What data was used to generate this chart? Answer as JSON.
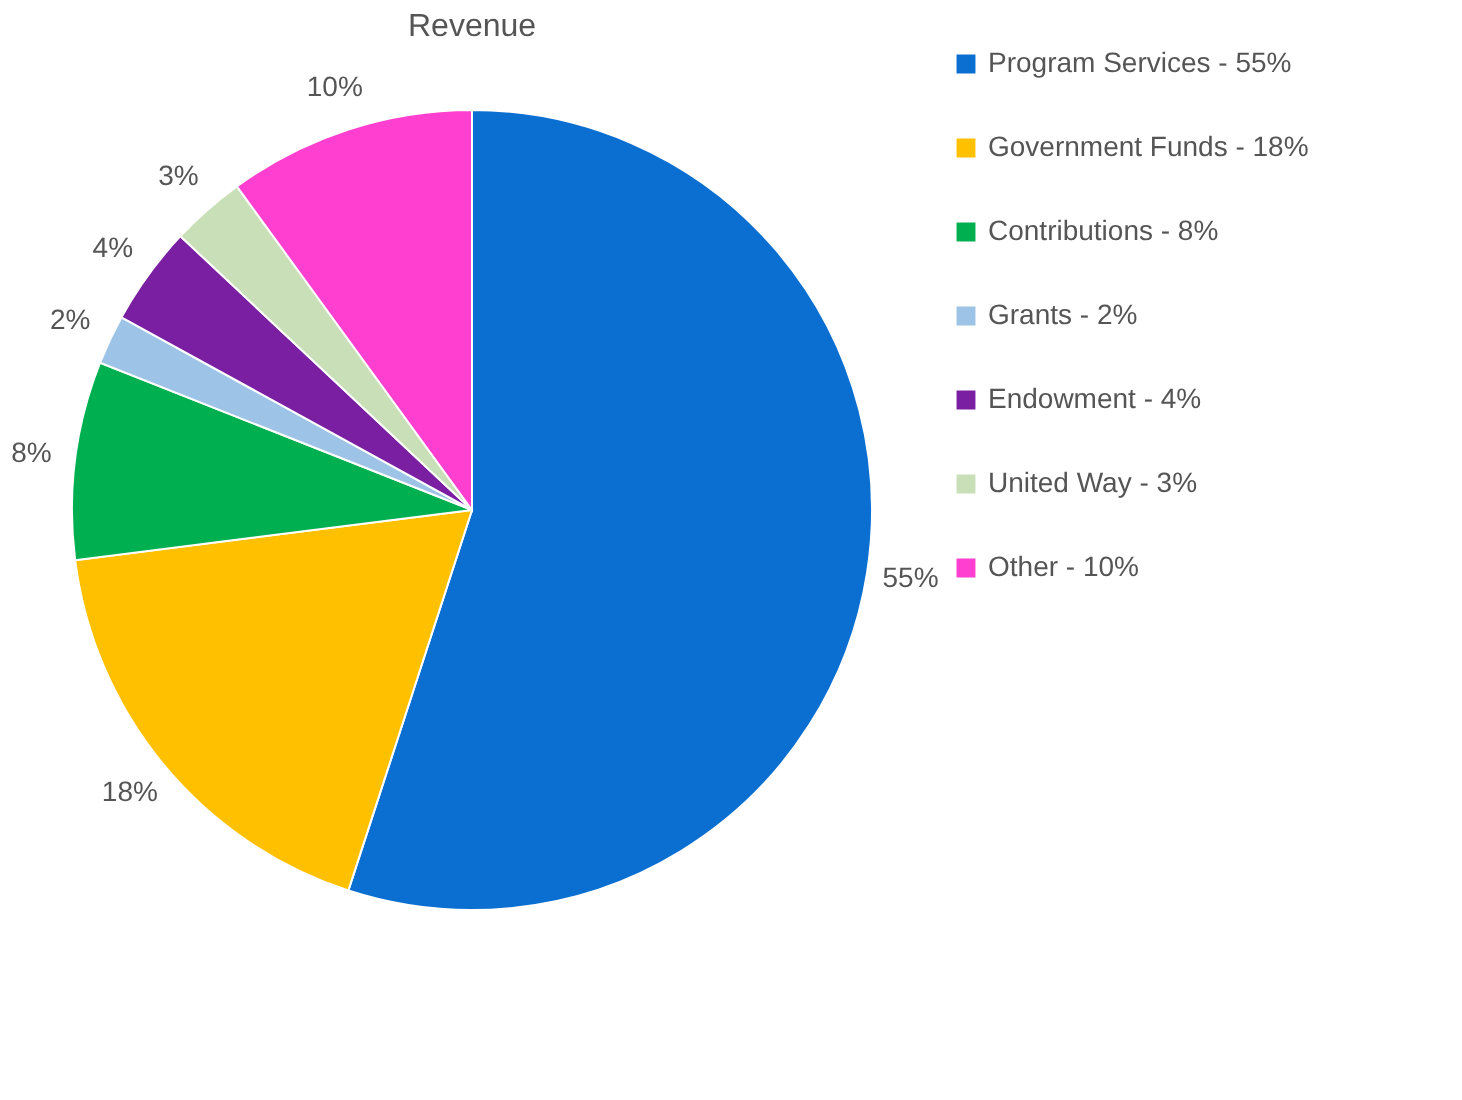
{
  "chart_data": {
    "type": "pie",
    "title": "Revenue",
    "categories": [
      "Program Services - 55%",
      "Government Funds - 18%",
      "Contributions - 8%",
      "Grants - 2%",
      "Endowment - 4%",
      "United Way - 3%",
      "Other - 10%"
    ],
    "values": [
      55,
      18,
      8,
      2,
      4,
      3,
      10
    ],
    "colors": [
      "#0a6fd1",
      "#ffc000",
      "#00b050",
      "#9dc3e6",
      "#7b1fa2",
      "#c9dfb8",
      "#ff3fcf"
    ],
    "value_labels": [
      "55%",
      "18%",
      "8%",
      "2%",
      "4%",
      "3%",
      "10%"
    ],
    "legend": "right"
  }
}
